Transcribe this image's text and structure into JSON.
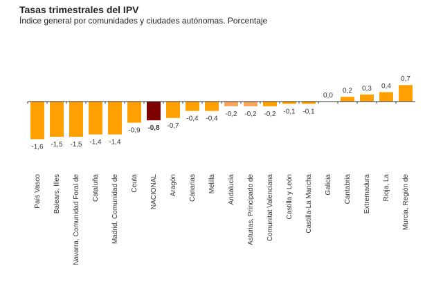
{
  "chart_data": {
    "type": "bar",
    "title": "Tasas trimestrales del IPV",
    "subtitle": "Índice general por comunidades y ciudades autónomas. Porcentaje",
    "xlabel": "",
    "ylabel": "",
    "categories": [
      "País Vasco",
      "Balears, Illes",
      "Navarra, Comunidad Foral de",
      "Cataluña",
      "Madrid, Comunidad de",
      "Ceuta",
      "NACIONAL",
      "Aragón",
      "Canarias",
      "Melilla",
      "Andalucía",
      "Asturias, Principado de",
      "Comunitat Valenciana",
      "Castilla y León",
      "Castilla-La Mancha",
      "Galicia",
      "Cantabria",
      "Extremadura",
      "Rioja, La",
      "Murcia, Región de"
    ],
    "values": [
      -1.6,
      -1.5,
      -1.5,
      -1.4,
      -1.4,
      -0.9,
      -0.8,
      -0.7,
      -0.4,
      -0.4,
      -0.2,
      -0.2,
      -0.2,
      -0.1,
      -0.1,
      0.0,
      0.2,
      0.3,
      0.4,
      0.7
    ],
    "labels": [
      "-1,6",
      "-1,5",
      "-1,5",
      "-1,4",
      "-1,4",
      "-0,9",
      "-0,8",
      "-0,7",
      "-0,4",
      "-0,4",
      "-0,2",
      "-0,2",
      "-0,2",
      "-0,1",
      "-0,1",
      "0,0",
      "0,2",
      "0,3",
      "0,4",
      "0,7"
    ],
    "highlight_index": 6,
    "colors": {
      "default": "#ff9f00",
      "highlight": "#7f0000",
      "light": "#f7a55a",
      "axis": "#333333",
      "text": "#333333"
    },
    "light_indices": [
      10,
      11
    ]
  }
}
